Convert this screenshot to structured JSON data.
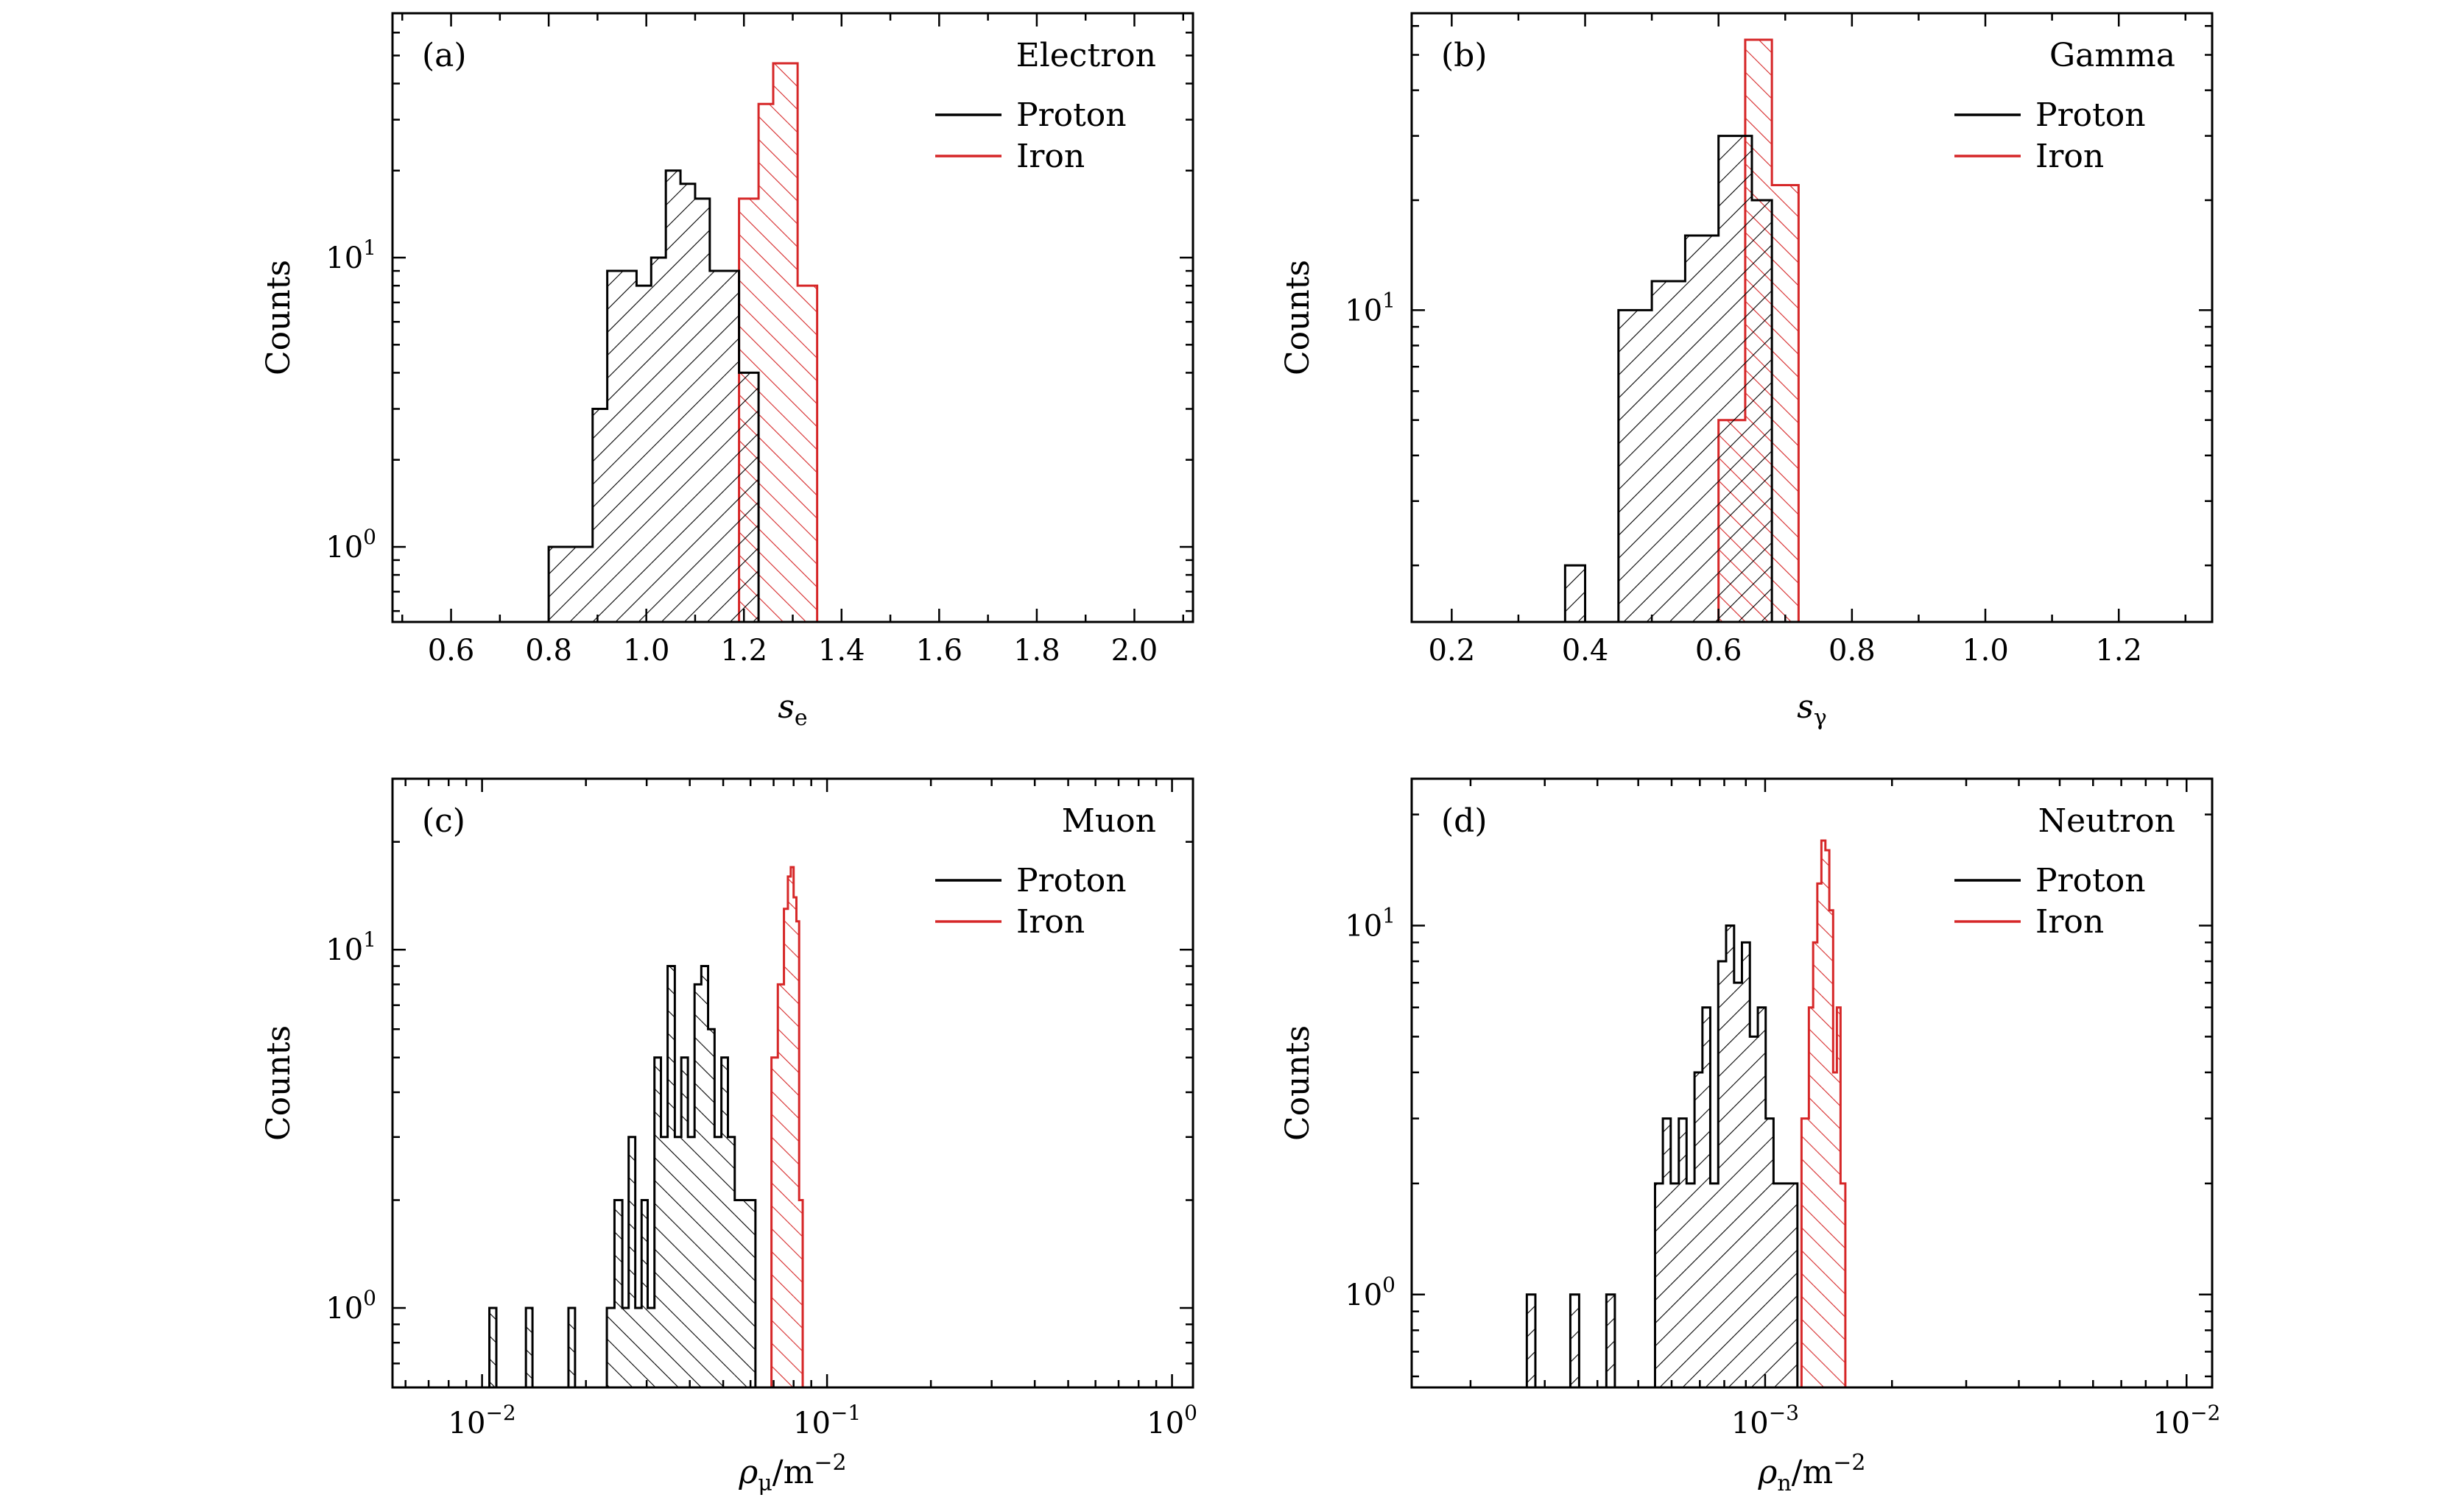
{
  "colors": {
    "proton": "#000000",
    "iron": "#d62728",
    "axis": "#000000"
  },
  "chart_data": [
    {
      "type": "bar",
      "panel": "(a)",
      "title": "Electron",
      "xlabel": {
        "symbol": "s",
        "sub": "e"
      },
      "ylabel": "Counts",
      "xscale": "linear",
      "yscale": "log",
      "xlim": [
        0.48,
        2.12
      ],
      "ylim": [
        0.55,
        70
      ],
      "xticks": [
        0.6,
        0.8,
        1.0,
        1.2,
        1.4,
        1.6,
        1.8,
        2.0
      ],
      "xtick_labels": [
        "0.6",
        "0.8",
        "1.0",
        "1.2",
        "1.4",
        "1.6",
        "1.8",
        "2.0"
      ],
      "xminor": [
        0.5,
        0.7,
        0.9,
        1.1,
        1.3,
        1.5,
        1.7,
        1.9,
        2.1
      ],
      "yticks": [
        1,
        10
      ],
      "ytick_labels": [
        {
          "base": "10",
          "exp": "0"
        },
        {
          "base": "10",
          "exp": "1"
        }
      ],
      "legend": [
        {
          "label": "Proton",
          "color": "proton"
        },
        {
          "label": "Iron",
          "color": "iron"
        }
      ],
      "legend_position": "top-right",
      "series": [
        {
          "name": "Proton",
          "color": "proton",
          "hatch": "back",
          "edges": [
            0.8,
            0.83,
            0.86,
            0.89,
            0.92,
            0.95,
            0.98,
            1.01,
            1.04,
            1.07,
            1.1,
            1.13,
            1.16,
            1.19,
            1.23
          ],
          "values": [
            1,
            1,
            1,
            3,
            9,
            9,
            8,
            10,
            20,
            18,
            16,
            9,
            9,
            4
          ]
        },
        {
          "name": "Iron",
          "color": "iron",
          "hatch": "fwd",
          "edges": [
            1.19,
            1.23,
            1.26,
            1.29,
            1.31,
            1.35
          ],
          "values": [
            16,
            34,
            47,
            47,
            8
          ]
        }
      ]
    },
    {
      "type": "bar",
      "panel": "(b)",
      "title": "Gamma",
      "xlabel": {
        "symbol": "s",
        "sub": "γ"
      },
      "ylabel": "Counts",
      "xscale": "linear",
      "yscale": "log",
      "xlim": [
        0.14,
        1.34
      ],
      "ylim": [
        1.4,
        65
      ],
      "xticks": [
        0.2,
        0.4,
        0.6,
        0.8,
        1.0,
        1.2
      ],
      "xtick_labels": [
        "0.2",
        "0.4",
        "0.6",
        "0.8",
        "1.0",
        "1.2"
      ],
      "xminor": [
        0.3,
        0.5,
        0.7,
        0.9,
        1.1,
        1.3
      ],
      "yticks": [
        10
      ],
      "ytick_labels": [
        {
          "base": "10",
          "exp": "1"
        }
      ],
      "legend": [
        {
          "label": "Proton",
          "color": "proton"
        },
        {
          "label": "Iron",
          "color": "iron"
        }
      ],
      "legend_position": "top-right",
      "series": [
        {
          "name": "Proton",
          "color": "proton",
          "hatch": "back",
          "edges": [
            0.37,
            0.4,
            0.45,
            0.5,
            0.55,
            0.6,
            0.65,
            0.68
          ],
          "values": [
            2,
            0,
            10,
            12,
            16,
            30,
            20
          ]
        },
        {
          "name": "Iron",
          "color": "iron",
          "hatch": "fwd",
          "edges": [
            0.6,
            0.64,
            0.68,
            0.72
          ],
          "values": [
            5,
            55,
            22
          ]
        }
      ]
    },
    {
      "type": "bar",
      "panel": "(c)",
      "title": "Muon",
      "xlabel": {
        "symbol": "ρ",
        "sub": "μ",
        "unit": "/m",
        "unit_exp": "−2"
      },
      "ylabel": "Counts",
      "xscale": "log",
      "yscale": "log",
      "xlim": [
        0.0055,
        1.15
      ],
      "ylim": [
        0.6,
        30
      ],
      "xticks": [
        0.01,
        0.1,
        1
      ],
      "xtick_labels": [
        {
          "base": "10",
          "exp": "−2"
        },
        {
          "base": "10",
          "exp": "−1"
        },
        {
          "base": "10",
          "exp": "0"
        }
      ],
      "yticks": [
        1,
        10
      ],
      "ytick_labels": [
        {
          "base": "10",
          "exp": "0"
        },
        {
          "base": "10",
          "exp": "1"
        }
      ],
      "legend": [
        {
          "label": "Proton",
          "color": "proton"
        },
        {
          "label": "Iron",
          "color": "iron"
        }
      ],
      "legend_position": "top-right",
      "series": [
        {
          "name": "Proton",
          "color": "proton",
          "hatch": "fwd",
          "edges": [
            0.0105,
            0.011,
            0.0134,
            0.014,
            0.0178,
            0.0186,
            0.023,
            0.0242,
            0.0255,
            0.0266,
            0.0278,
            0.029,
            0.0302,
            0.0316,
            0.033,
            0.0345,
            0.0362,
            0.0378,
            0.0395,
            0.0413,
            0.0432,
            0.0452,
            0.0472,
            0.0494,
            0.0516,
            0.054,
            0.0565,
            0.062
          ],
          "values": [
            1,
            0,
            1,
            0,
            1,
            0,
            1,
            2,
            1,
            3,
            1,
            2,
            1,
            5,
            3,
            9,
            3,
            5,
            3,
            8,
            9,
            6,
            3,
            5,
            3,
            2,
            2
          ]
        },
        {
          "name": "Iron",
          "color": "iron",
          "hatch": "fwd",
          "edges": [
            0.069,
            0.072,
            0.075,
            0.077,
            0.0785,
            0.08,
            0.0815,
            0.083,
            0.085
          ],
          "values": [
            5,
            8,
            13,
            16,
            17,
            14,
            12,
            2
          ]
        }
      ]
    },
    {
      "type": "bar",
      "panel": "(d)",
      "title": "Neutron",
      "xlabel": {
        "symbol": "ρ",
        "sub": "n",
        "unit": "/m",
        "unit_exp": "−2"
      },
      "ylabel": "Counts",
      "xscale": "log",
      "yscale": "log",
      "xlim": [
        0.000145,
        0.0115
      ],
      "ylim": [
        0.56,
        25
      ],
      "xticks": [
        0.001,
        0.01
      ],
      "xtick_labels": [
        {
          "base": "10",
          "exp": "−3"
        },
        {
          "base": "10",
          "exp": "−2"
        }
      ],
      "yticks": [
        1,
        10
      ],
      "ytick_labels": [
        {
          "base": "10",
          "exp": "0"
        },
        {
          "base": "10",
          "exp": "1"
        }
      ],
      "legend": [
        {
          "label": "Proton",
          "color": "proton"
        },
        {
          "label": "Iron",
          "color": "iron"
        }
      ],
      "legend_position": "top-right",
      "series": [
        {
          "name": "Proton",
          "color": "proton",
          "hatch": "back",
          "edges": [
            0.000272,
            0.000285,
            0.000345,
            0.000362,
            0.00042,
            0.00044,
            0.000548,
            0.000572,
            0.000597,
            0.000624,
            0.000651,
            0.00068,
            0.00071,
            0.000741,
            0.000774,
            0.000808,
            0.000844,
            0.000881,
            0.00092,
            0.000961,
            0.001003,
            0.001047,
            0.001094,
            0.001142,
            0.001193
          ],
          "values": [
            1,
            0,
            1,
            0,
            1,
            0,
            2,
            3,
            2,
            3,
            2,
            4,
            6,
            2,
            8,
            10,
            7,
            9,
            5,
            6,
            3,
            2,
            2,
            2
          ]
        },
        {
          "name": "Iron",
          "color": "iron",
          "hatch": "fwd",
          "edges": [
            0.00122,
            0.00127,
            0.0013,
            0.00133,
            0.00136,
            0.00139,
            0.00142,
            0.00145,
            0.00148,
            0.00151,
            0.00155
          ],
          "values": [
            3,
            6,
            9,
            13,
            17,
            16,
            11,
            4,
            6,
            2
          ]
        }
      ]
    }
  ]
}
